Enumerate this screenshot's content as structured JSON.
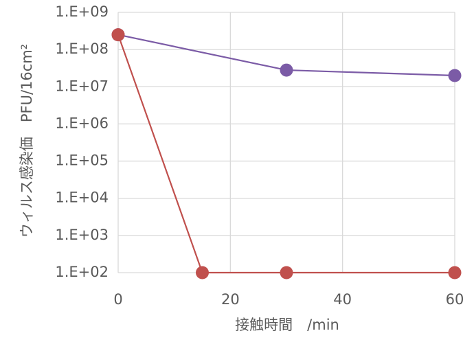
{
  "chart_data": {
    "type": "line",
    "ylabel": "ウィルス感染価　PFU/16cm²",
    "xlabel": "接触時間　/min",
    "series": [
      {
        "color": "#7b5ba6",
        "x": [
          0,
          30,
          60
        ],
        "values": [
          250000000,
          28000000,
          20000000
        ]
      },
      {
        "color": "#c0504d",
        "x": [
          0,
          15,
          30,
          60
        ],
        "values": [
          250000000,
          100,
          100,
          100
        ]
      }
    ],
    "xlim": [
      0,
      60
    ],
    "xticks": [
      0,
      20,
      40,
      60
    ],
    "ylim": [
      100,
      1000000000
    ],
    "ylog": true,
    "yticks": [
      {
        "value": 100,
        "label": "1.E+02"
      },
      {
        "value": 1000,
        "label": "1.E+03"
      },
      {
        "value": 10000,
        "label": "1.E+04"
      },
      {
        "value": 100000,
        "label": "1.E+05"
      },
      {
        "value": 1000000,
        "label": "1.E+06"
      },
      {
        "value": 10000000,
        "label": "1.E+07"
      },
      {
        "value": 100000000,
        "label": "1.E+08"
      },
      {
        "value": 1000000000,
        "label": "1.E+09"
      }
    ],
    "grid": true
  }
}
